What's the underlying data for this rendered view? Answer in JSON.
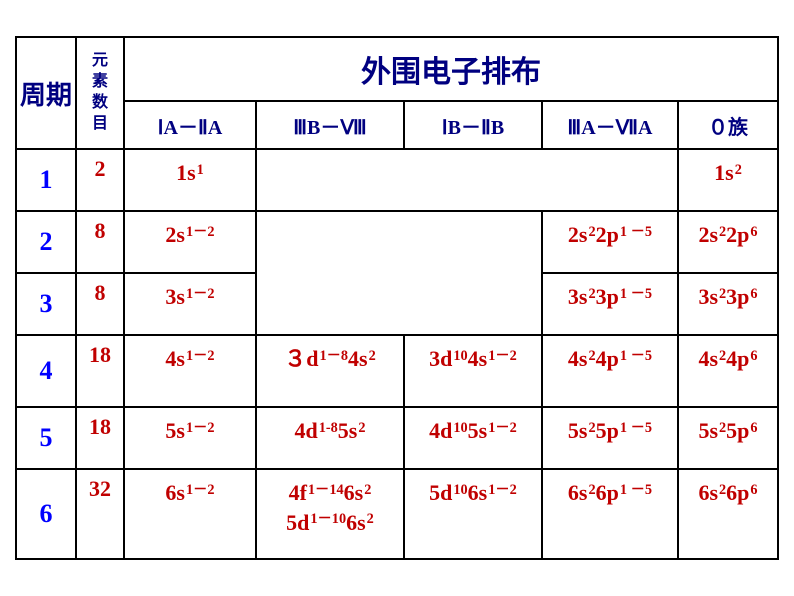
{
  "header": {
    "period": "周期",
    "count_label": "元素数目",
    "main_title": "外围电子排布",
    "cols": {
      "IA_IIA": "ⅠA－ⅡA",
      "IIIB_VIII": "ⅢB－Ⅷ",
      "IB_IIB": "ⅠB－ⅡB",
      "IIIA_VIIA": "ⅢA－ⅦA",
      "zero": "０族"
    }
  },
  "style": {
    "hdr_color": "#000080",
    "period_num_color": "#0000ff",
    "data_color": "#c00000",
    "border_color": "#000000",
    "title_fontsize": 30,
    "sub_fontsize": 20,
    "cell_fontsize": 22
  },
  "rows": [
    {
      "period": "1",
      "count": "2",
      "IA_IIA": {
        "base": "1s",
        "sup": "1"
      },
      "zero": {
        "base": "1s",
        "sup": "2"
      }
    },
    {
      "period": "2",
      "count": "8",
      "IA_IIA": {
        "base": "2s",
        "sup": "1－2"
      },
      "IIIA_VIIA": {
        "parts": [
          {
            "b": "2s",
            "s": "2"
          },
          {
            "b": "2p",
            "s": "1 －5"
          }
        ]
      },
      "zero": {
        "parts": [
          {
            "b": "2s",
            "s": "2"
          },
          {
            "b": "2p",
            "s": "6"
          }
        ]
      }
    },
    {
      "period": "3",
      "count": "8",
      "IA_IIA": {
        "base": "3s",
        "sup": "1－2"
      },
      "IIIA_VIIA": {
        "parts": [
          {
            "b": "3s",
            "s": "2"
          },
          {
            "b": "3p",
            "s": "1 －5"
          }
        ]
      },
      "zero": {
        "parts": [
          {
            "b": "3s",
            "s": "2"
          },
          {
            "b": "3p",
            "s": "6"
          }
        ]
      }
    },
    {
      "period": "4",
      "count": "18",
      "IA_IIA": {
        "base": "4s",
        "sup": "1－2"
      },
      "IIIB_VIII": {
        "parts": [
          {
            "b": "３d",
            "s": "1－8"
          },
          {
            "b": "4s",
            "s": "2"
          }
        ]
      },
      "IB_IIB": {
        "parts": [
          {
            "b": "3d",
            "s": "10"
          },
          {
            "b": "4s",
            "s": "1－2"
          }
        ]
      },
      "IIIA_VIIA": {
        "parts": [
          {
            "b": "4s",
            "s": "2"
          },
          {
            "b": "4p",
            "s": "1 －5"
          }
        ]
      },
      "zero": {
        "parts": [
          {
            "b": "4s",
            "s": "2"
          },
          {
            "b": "4p",
            "s": "6"
          }
        ]
      }
    },
    {
      "period": "5",
      "count": "18",
      "IA_IIA": {
        "base": "5s",
        "sup": "1－2"
      },
      "IIIB_VIII": {
        "parts": [
          {
            "b": "4d",
            "s": "1-8"
          },
          {
            "b": "5s",
            "s": "2"
          }
        ]
      },
      "IB_IIB": {
        "parts": [
          {
            "b": "4d",
            "s": "10"
          },
          {
            "b": "5s",
            "s": "1－2"
          }
        ]
      },
      "IIIA_VIIA": {
        "parts": [
          {
            "b": "5s",
            "s": "2"
          },
          {
            "b": "5p",
            "s": "1 －5"
          }
        ]
      },
      "zero": {
        "parts": [
          {
            "b": "5s",
            "s": "2"
          },
          {
            "b": "5p",
            "s": "6"
          }
        ]
      }
    },
    {
      "period": "6",
      "count": "32",
      "IA_IIA": {
        "base": "6s",
        "sup": "1－2"
      },
      "IIIB_VIII": {
        "lines": [
          {
            "parts": [
              {
                "b": "4f",
                "s": "1－14"
              },
              {
                "b": "6s",
                "s": "2"
              }
            ]
          },
          {
            "parts": [
              {
                "b": "5d",
                "s": "1－10"
              },
              {
                "b": "6s",
                "s": "2"
              }
            ]
          }
        ]
      },
      "IB_IIB": {
        "parts": [
          {
            "b": "5d",
            "s": "10"
          },
          {
            "b": "6s",
            "s": "1－2"
          }
        ]
      },
      "IIIA_VIIA": {
        "parts": [
          {
            "b": "6s",
            "s": "2"
          },
          {
            "b": "6p",
            "s": "1 －5"
          }
        ]
      },
      "zero": {
        "parts": [
          {
            "b": "6s",
            "s": "2"
          },
          {
            "b": "6p",
            "s": "6"
          }
        ]
      }
    }
  ]
}
